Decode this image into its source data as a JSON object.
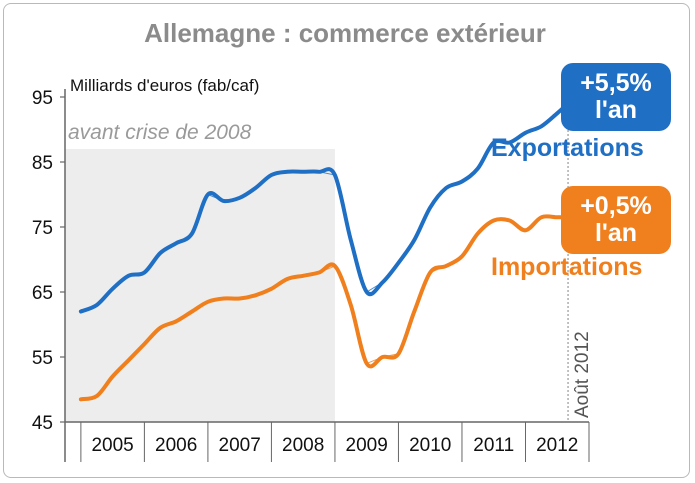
{
  "chart_data": {
    "type": "line",
    "title": "Allemagne : commerce extérieur",
    "ylabel": "Milliards d'euros (fab/caf)",
    "ylim": [
      45,
      95
    ],
    "yticks": [
      45,
      55,
      65,
      75,
      85,
      95
    ],
    "xlim": [
      2004.75,
      2013.0
    ],
    "categories": [
      "2005",
      "2006",
      "2007",
      "2008",
      "2009",
      "2010",
      "2011",
      "2012"
    ],
    "shaded_region": {
      "from": 2004.75,
      "to": 2009.0,
      "label": "avant crise de 2008"
    },
    "date_marker": {
      "x": 2012.67,
      "label": "Août 2012"
    },
    "grid": false,
    "series": [
      {
        "name": "Exportations",
        "color": "#1f6fc5",
        "badge": {
          "line1": "+5,5%",
          "line2": "l'an"
        },
        "x": [
          2005.0,
          2005.25,
          2005.5,
          2005.75,
          2006.0,
          2006.25,
          2006.5,
          2006.75,
          2007.0,
          2007.25,
          2007.5,
          2007.75,
          2008.0,
          2008.25,
          2008.5,
          2008.75,
          2009.0,
          2009.25,
          2009.5,
          2009.75,
          2010.0,
          2010.25,
          2010.5,
          2010.75,
          2011.0,
          2011.25,
          2011.5,
          2011.75,
          2012.0,
          2012.25,
          2012.5,
          2012.67
        ],
        "values": [
          62,
          63,
          65.5,
          67.5,
          68,
          71,
          72.5,
          74,
          80,
          79,
          79.5,
          81,
          83,
          83.5,
          83.5,
          83.5,
          83,
          73,
          65,
          66.5,
          69.5,
          73,
          78,
          81,
          82,
          84,
          88,
          88,
          89.5,
          90.5,
          92.5,
          94
        ]
      },
      {
        "name": "Importations",
        "color": "#f07f1d",
        "badge": {
          "line1": "+0,5%",
          "line2": "l'an"
        },
        "x": [
          2005.0,
          2005.25,
          2005.5,
          2005.75,
          2006.0,
          2006.25,
          2006.5,
          2006.75,
          2007.0,
          2007.25,
          2007.5,
          2007.75,
          2008.0,
          2008.25,
          2008.5,
          2008.75,
          2009.0,
          2009.25,
          2009.5,
          2009.75,
          2010.0,
          2010.25,
          2010.5,
          2010.75,
          2011.0,
          2011.25,
          2011.5,
          2011.75,
          2012.0,
          2012.25,
          2012.5,
          2012.67
        ],
        "values": [
          48.5,
          49,
          52,
          54.5,
          57,
          59.5,
          60.5,
          62,
          63.5,
          64,
          64,
          64.5,
          65.5,
          67,
          67.5,
          68,
          69,
          63,
          54,
          55,
          55.5,
          62,
          68,
          69,
          70.5,
          74,
          76,
          76,
          74.5,
          76.5,
          76.5,
          76.5
        ]
      }
    ]
  }
}
